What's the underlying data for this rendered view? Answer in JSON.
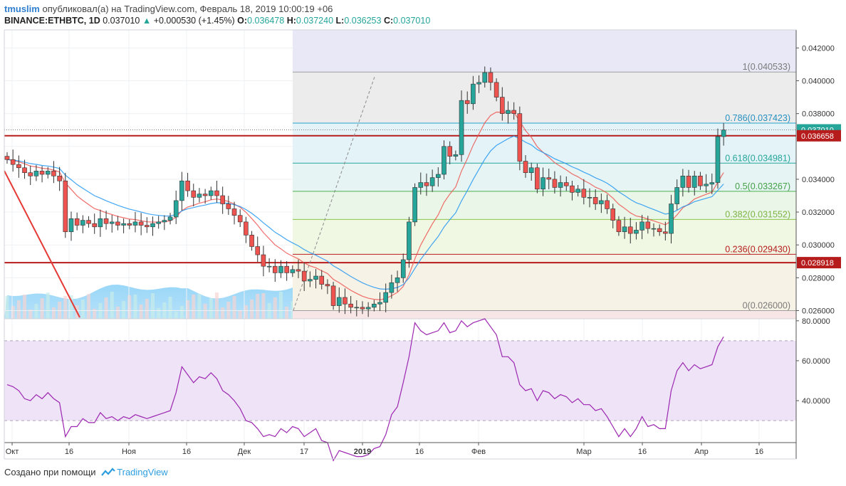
{
  "header": {
    "user": "tmuslim",
    "published_text": "опубликовал(а) на TradingView.com, Февраль 18, 2019 10:00:19 +06",
    "symbol": "BINANCE:ETHBTC, 1D",
    "last": "0.037010",
    "change": "+0.000530 (+1.45%)",
    "o_label": "O:",
    "o_value": "0.036478",
    "h_label": "H:",
    "h_value": "0.037240",
    "l_label": "L:",
    "l_value": "0.036253",
    "c_label": "C:",
    "c_value": "0.037010"
  },
  "footer": {
    "created_with": "Создано при помощи",
    "brand": "TradingView"
  },
  "colors": {
    "up": "#26a69a",
    "down": "#ef5350",
    "accent": "#2f9ee0",
    "resistance": "#b71c1c",
    "price_label": "#26a69a"
  },
  "chart_data": [
    {
      "type": "candlestick",
      "title": "BINANCE:ETHBTC, 1D",
      "x_ticks": [
        "Окт",
        "16",
        "Ноя",
        "16",
        "Дек",
        "17",
        "2019",
        "16",
        "Фев",
        "Мар",
        "16",
        "Апр",
        "16"
      ],
      "y_ticks": [
        "0.042000",
        "0.040000",
        "0.038000",
        "0.034000",
        "0.032000",
        "0.030000",
        "0.028000",
        "0.026000"
      ],
      "ylim": [
        0.0255,
        0.0431
      ],
      "price_labels": [
        {
          "value": 0.03701,
          "label": "0.037010",
          "color": "#26a69a"
        },
        {
          "value": 0.03665,
          "label": "0.036658",
          "color": "#b71c1c"
        },
        {
          "value": 0.02892,
          "label": "0.028918",
          "color": "#b71c1c"
        }
      ],
      "fibonacci": [
        {
          "level": "1",
          "value": 0.040533,
          "label": "1(0.040533)"
        },
        {
          "level": "0.786",
          "value": 0.037423,
          "label": "0.786(0.037423)"
        },
        {
          "level": "0.618",
          "value": 0.034981,
          "label": "0.618(0.034981)"
        },
        {
          "level": "0.5",
          "value": 0.033267,
          "label": "0.5(0.033267)"
        },
        {
          "level": "0.382",
          "value": 0.031552,
          "label": "0.382(0.031552)"
        },
        {
          "level": "0.236",
          "value": 0.02943,
          "label": "0.236(0.029430)"
        },
        {
          "level": "0",
          "value": 0.026,
          "label": "0(0.026000)"
        }
      ],
      "horizontal_lines": [
        0.03665,
        0.02892
      ],
      "closes": [
        0.0352,
        0.0349,
        0.0347,
        0.0344,
        0.0342,
        0.0345,
        0.0343,
        0.0345,
        0.0342,
        0.0339,
        0.0308,
        0.0316,
        0.0312,
        0.0315,
        0.0313,
        0.0311,
        0.0316,
        0.0313,
        0.0314,
        0.0312,
        0.0313,
        0.0312,
        0.0314,
        0.0312,
        0.0311,
        0.0313,
        0.0314,
        0.0315,
        0.0317,
        0.0327,
        0.0339,
        0.0333,
        0.0329,
        0.0331,
        0.033,
        0.0333,
        0.033,
        0.0325,
        0.0322,
        0.0318,
        0.0314,
        0.0306,
        0.0299,
        0.0294,
        0.0287,
        0.0287,
        0.0283,
        0.0287,
        0.0283,
        0.0285,
        0.0284,
        0.0278,
        0.0279,
        0.0281,
        0.0276,
        0.0275,
        0.0263,
        0.0268,
        0.0264,
        0.0262,
        0.0262,
        0.0261,
        0.0262,
        0.0264,
        0.0265,
        0.0271,
        0.0277,
        0.028,
        0.0291,
        0.0314,
        0.0335,
        0.0338,
        0.0336,
        0.0341,
        0.0343,
        0.036,
        0.0354,
        0.0355,
        0.0388,
        0.0386,
        0.0398,
        0.0399,
        0.0405,
        0.0399,
        0.039,
        0.038,
        0.0382,
        0.038,
        0.0351,
        0.0344,
        0.0347,
        0.0334,
        0.0341,
        0.034,
        0.0335,
        0.0338,
        0.0336,
        0.0332,
        0.0334,
        0.0329,
        0.0329,
        0.0325,
        0.0327,
        0.0322,
        0.0315,
        0.0308,
        0.0311,
        0.0307,
        0.0309,
        0.0314,
        0.031,
        0.031,
        0.0308,
        0.0307,
        0.0325,
        0.0335,
        0.0342,
        0.0335,
        0.0342,
        0.0336,
        0.0337,
        0.0338,
        0.0366,
        0.037
      ],
      "ma_fast_end": 0.0336,
      "ma_slow_end": 0.0333,
      "indicator": {
        "type": "line",
        "name": "RSI",
        "y_ticks": [
          "80.0000",
          "60.0000",
          "40.0000"
        ],
        "ylim": [
          19,
          81
        ],
        "bands": [
          70,
          30
        ],
        "values": [
          48,
          47,
          45,
          41,
          40,
          43,
          41,
          44,
          41,
          39,
          22,
          27,
          27,
          31,
          29,
          29,
          34,
          31,
          32,
          30,
          32,
          31,
          33,
          32,
          31,
          32,
          33,
          34,
          35,
          44,
          57,
          53,
          49,
          52,
          51,
          54,
          51,
          45,
          43,
          40,
          36,
          30,
          29,
          26,
          22,
          23,
          22,
          26,
          24,
          27,
          26,
          22,
          24,
          26,
          20,
          19,
          10,
          15,
          14,
          13,
          12,
          12,
          13,
          16,
          17,
          23,
          33,
          37,
          49,
          62,
          79,
          75,
          73,
          74,
          75,
          79,
          74,
          75,
          80,
          77,
          79,
          80,
          81,
          77,
          73,
          62,
          62,
          59,
          48,
          45,
          46,
          40,
          45,
          44,
          41,
          43,
          42,
          39,
          41,
          38,
          38,
          35,
          36,
          32,
          27,
          22,
          26,
          22,
          26,
          32,
          27,
          28,
          26,
          26,
          45,
          55,
          59,
          55,
          58,
          56,
          57,
          58,
          67,
          72
        ]
      }
    }
  ]
}
